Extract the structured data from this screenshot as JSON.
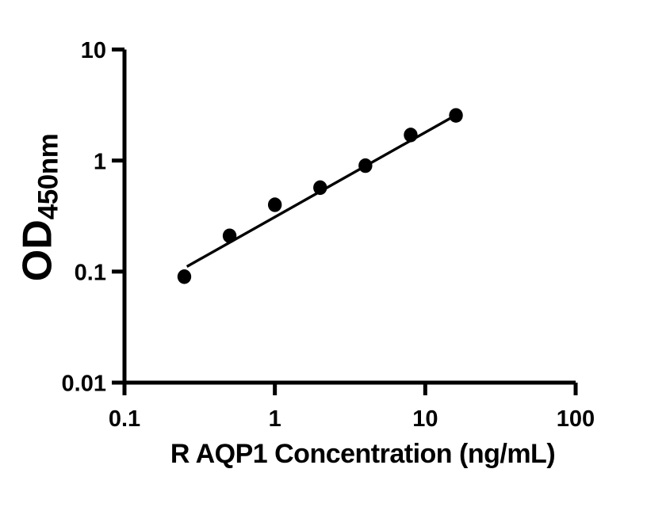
{
  "figure": {
    "background_color": "#ffffff",
    "axis_color": "#000000",
    "marker_color": "#000000",
    "trend_line_color": "#000000"
  },
  "chart_data": {
    "type": "scatter",
    "title": "",
    "xlabel": "R AQP1 Concentration (ng/mL)",
    "ylabel_main": "OD",
    "ylabel_sub": "450nm",
    "x_scale": "log",
    "y_scale": "log",
    "xlim": [
      0.1,
      100
    ],
    "ylim": [
      0.01,
      10
    ],
    "grid": false,
    "legend": "none",
    "x_ticks": [
      {
        "value": 0.1,
        "label": "0.1"
      },
      {
        "value": 1,
        "label": "1"
      },
      {
        "value": 10,
        "label": "10"
      },
      {
        "value": 100,
        "label": "100"
      }
    ],
    "y_ticks": [
      {
        "value": 10,
        "label": "10"
      },
      {
        "value": 1,
        "label": "1"
      },
      {
        "value": 0.1,
        "label": "0.1"
      },
      {
        "value": 0.01,
        "label": "0.01"
      }
    ],
    "points": [
      {
        "x": 0.25,
        "y": 0.09
      },
      {
        "x": 0.5,
        "y": 0.21
      },
      {
        "x": 1,
        "y": 0.4
      },
      {
        "x": 2,
        "y": 0.57
      },
      {
        "x": 4,
        "y": 0.9
      },
      {
        "x": 8,
        "y": 1.7
      },
      {
        "x": 16,
        "y": 2.55
      }
    ],
    "trend_line": {
      "x1": 0.26,
      "y1": 0.111,
      "x2": 16.1,
      "y2": 2.58
    }
  }
}
